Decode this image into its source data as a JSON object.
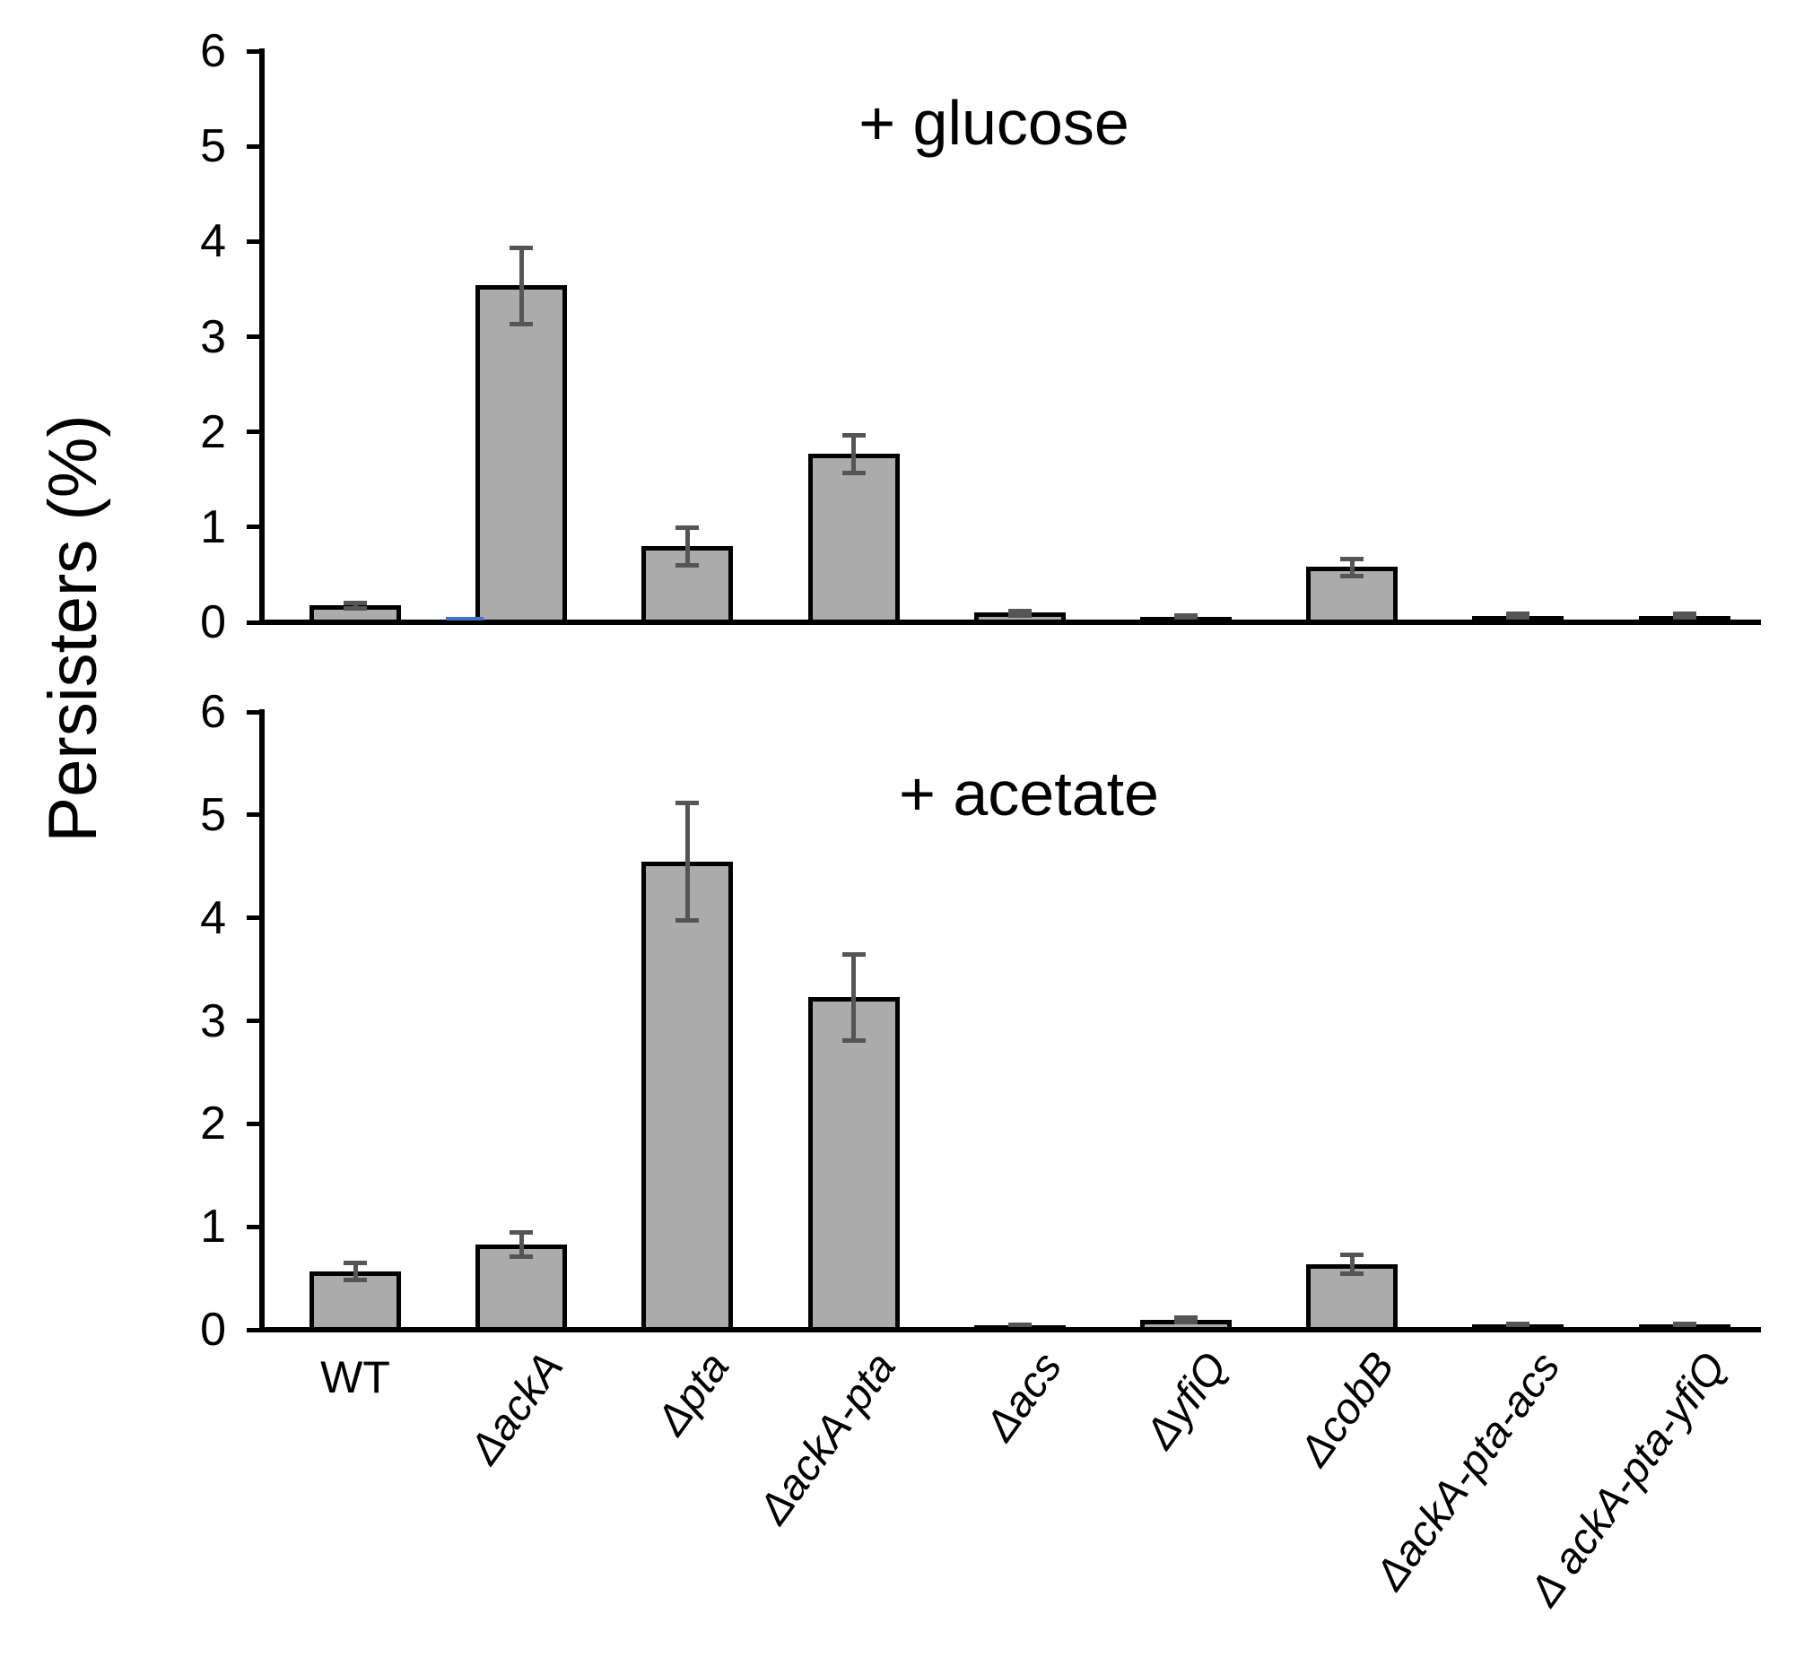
{
  "figure": {
    "y_axis_title": "Persisters (%)",
    "background_color": "#ffffff",
    "axis_color": "#000000",
    "text_color": "#000000",
    "bar_fill_color": "#ABABAB",
    "bar_border_color": "#000000",
    "error_bar_color": "#555555",
    "stray_artifact_color": "#4472C4"
  },
  "chart_data": [
    {
      "type": "bar",
      "title": "+ glucose",
      "ylabel": "Persisters (%)",
      "xlabel": "",
      "ylim": [
        0,
        6
      ],
      "ytick_interval": 1,
      "grid": false,
      "legend": "none",
      "categories": [
        "WT",
        "ΔackA",
        "Δpta",
        "ΔackA-pta",
        "Δacs",
        "ΔyfiQ",
        "ΔcobB",
        "ΔackA-pta-acs",
        "Δ ackA-pta-yfiQ"
      ],
      "series": [
        {
          "name": "+ glucose",
          "values": [
            0.18,
            3.54,
            0.8,
            1.77,
            0.1,
            0.06,
            0.58,
            0.07,
            0.07
          ],
          "errors": [
            0.03,
            0.4,
            0.2,
            0.2,
            0.02,
            0.02,
            0.09,
            0.02,
            0.02
          ]
        }
      ]
    },
    {
      "type": "bar",
      "title": "+ acetate",
      "ylabel": "Persisters (%)",
      "xlabel": "",
      "ylim": [
        0,
        6
      ],
      "ytick_interval": 1,
      "grid": false,
      "legend": "none",
      "categories": [
        "WT",
        "ΔackA",
        "Δpta",
        "ΔackA-pta",
        "Δacs",
        "ΔyfiQ",
        "ΔcobB",
        "ΔackA-pta-acs",
        "Δ ackA-pta-yfiQ"
      ],
      "series": [
        {
          "name": "+ acetate",
          "values": [
            0.57,
            0.83,
            4.55,
            3.23,
            0.04,
            0.1,
            0.64,
            0.05,
            0.05
          ],
          "errors": [
            0.08,
            0.12,
            0.57,
            0.42,
            0.01,
            0.02,
            0.09,
            0.01,
            0.01
          ]
        }
      ]
    }
  ]
}
